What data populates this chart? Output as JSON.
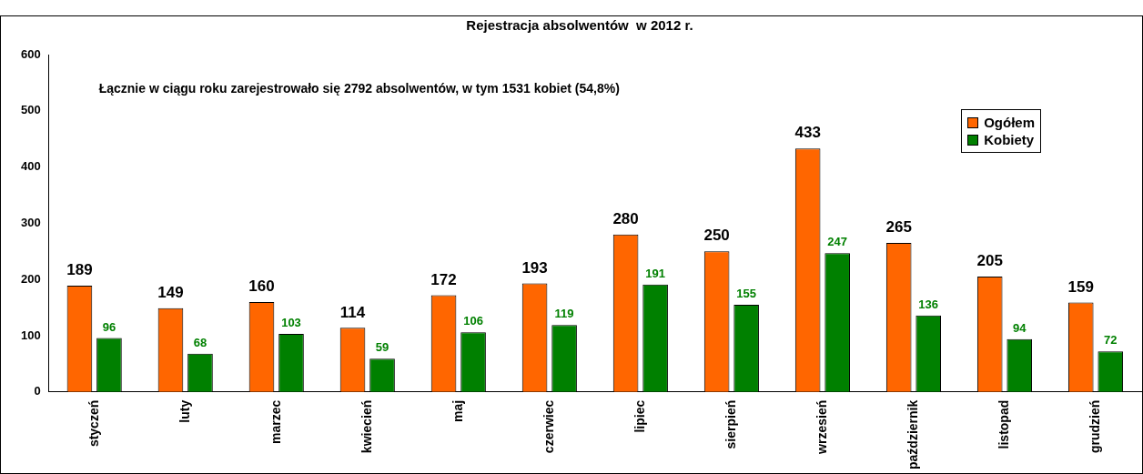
{
  "chart_data": {
    "type": "bar",
    "title": "Rejestracja absolwentów  w 2012 r.",
    "categories": [
      "styczeń",
      "luty",
      "marzec",
      "kwiecień",
      "maj",
      "czerwiec",
      "lipiec",
      "sierpień",
      "wrzesień",
      "październik",
      "listopad",
      "grudzień"
    ],
    "series": [
      {
        "name": "Ogółem",
        "color": "#ff6600",
        "values": [
          189,
          149,
          160,
          114,
          172,
          193,
          280,
          250,
          433,
          265,
          205,
          159
        ]
      },
      {
        "name": "Kobiety",
        "color": "#008000",
        "values": [
          96,
          68,
          103,
          59,
          106,
          119,
          191,
          155,
          247,
          136,
          94,
          72
        ]
      }
    ],
    "ylim": [
      0,
      600
    ],
    "yticks": [
      0,
      100,
      200,
      300,
      400,
      500,
      600
    ],
    "grid": false,
    "legend": "top right",
    "data_labels": true,
    "annotations": [
      "Łącznie w ciągu roku zarejestrowało się 2792 absolwentów, w tym 1531 kobiet (54,8%)"
    ]
  }
}
